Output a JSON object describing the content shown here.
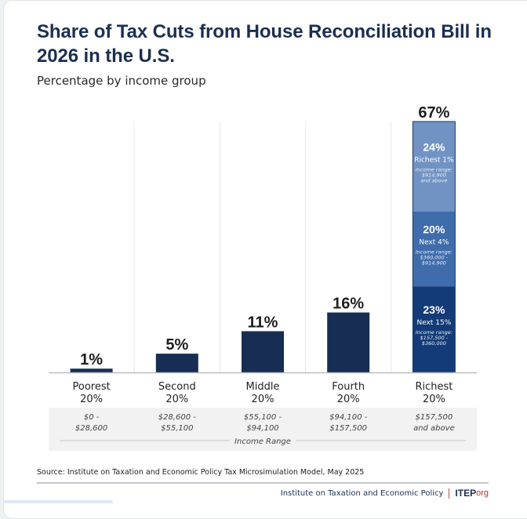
{
  "header": {
    "title": "Share of Tax Cuts from House Reconciliation Bill in 2026 in the U.S.",
    "subtitle": "Percentage by income group"
  },
  "chart_data": {
    "type": "bar",
    "title": "Share of Tax Cuts from House Reconciliation Bill in 2026 in the U.S.",
    "subtitle": "Percentage by income group",
    "xlabel": "Income Range",
    "ylabel": "",
    "ylim": [
      0,
      67
    ],
    "grid": true,
    "categories": [
      {
        "line1": "Poorest",
        "line2": "20%",
        "range1": "$0 -",
        "range2": "$28,600"
      },
      {
        "line1": "Second",
        "line2": "20%",
        "range1": "$28,600 -",
        "range2": "$55,100"
      },
      {
        "line1": "Middle",
        "line2": "20%",
        "range1": "$55,100 -",
        "range2": "$94,100"
      },
      {
        "line1": "Fourth",
        "line2": "20%",
        "range1": "$94,100 -",
        "range2": "$157,500"
      },
      {
        "line1": "Richest",
        "line2": "20%",
        "range1": "$157,500",
        "range2": "and above"
      }
    ],
    "values": [
      1,
      5,
      11,
      16,
      67
    ],
    "value_labels": [
      "1%",
      "5%",
      "11%",
      "16%",
      "67%"
    ],
    "bar_color": "#172d54",
    "stacked_breakdown": {
      "category": "Richest 20%",
      "segments": [
        {
          "value": 23,
          "label": "23%",
          "group": "Next 15%",
          "range_title": "Income range:",
          "range1": "$157,500 -",
          "range2": "$360,000",
          "color": "#133b78"
        },
        {
          "value": 20,
          "label": "20%",
          "group": "Next 4%",
          "range_title": "Income range:",
          "range1": "$360,000 -",
          "range2": "$914,900",
          "color": "#3f6cab"
        },
        {
          "value": 24,
          "label": "24%",
          "group": "Richest 1%",
          "range_title": "Income range:",
          "range1": "$914,900",
          "range2": "and above",
          "color": "#7093c3"
        }
      ]
    }
  },
  "footer": {
    "source": "Source: Institute on Taxation and Economic Policy Tax Microsimulation Model, May 2025",
    "org_name": "Institute on Taxation and Economic Policy",
    "logo_main": "ITEP",
    "logo_suffix": "org"
  }
}
